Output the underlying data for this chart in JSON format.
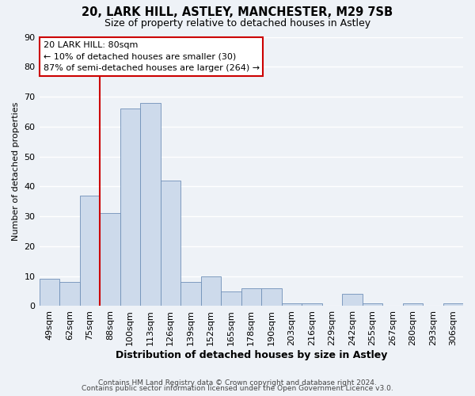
{
  "title1": "20, LARK HILL, ASTLEY, MANCHESTER, M29 7SB",
  "title2": "Size of property relative to detached houses in Astley",
  "xlabel": "Distribution of detached houses by size in Astley",
  "ylabel": "Number of detached properties",
  "bar_labels": [
    "49sqm",
    "62sqm",
    "75sqm",
    "88sqm",
    "100sqm",
    "113sqm",
    "126sqm",
    "139sqm",
    "152sqm",
    "165sqm",
    "178sqm",
    "190sqm",
    "203sqm",
    "216sqm",
    "229sqm",
    "242sqm",
    "255sqm",
    "267sqm",
    "280sqm",
    "293sqm",
    "306sqm"
  ],
  "bar_values": [
    9,
    8,
    37,
    31,
    66,
    68,
    42,
    8,
    10,
    5,
    6,
    6,
    1,
    1,
    0,
    4,
    1,
    0,
    1,
    0,
    1
  ],
  "bar_color": "#cddaeb",
  "bar_edge_color": "#7090b8",
  "ylim": [
    0,
    90
  ],
  "yticks": [
    0,
    10,
    20,
    30,
    40,
    50,
    60,
    70,
    80,
    90
  ],
  "vline_x": 2.5,
  "vline_color": "#cc0000",
  "annotation_title": "20 LARK HILL: 80sqm",
  "annotation_line1": "← 10% of detached houses are smaller (30)",
  "annotation_line2": "87% of semi-detached houses are larger (264) →",
  "annotation_box_color": "#cc0000",
  "footer1": "Contains HM Land Registry data © Crown copyright and database right 2024.",
  "footer2": "Contains public sector information licensed under the Open Government Licence v3.0.",
  "bg_color": "#eef2f7",
  "grid_color": "#ffffff"
}
